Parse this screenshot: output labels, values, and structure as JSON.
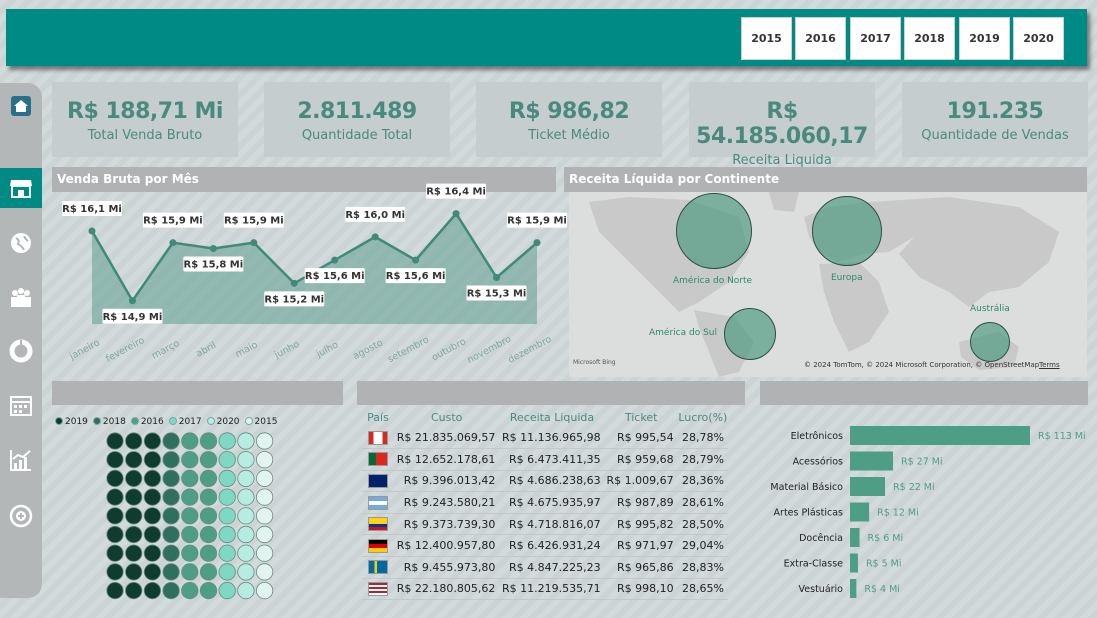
{
  "header": {
    "years": [
      "2015",
      "2016",
      "2017",
      "2018",
      "2019",
      "2020"
    ]
  },
  "sidebar": {
    "items": [
      "home-icon",
      "store-icon",
      "globe-icon",
      "people-icon",
      "donut-icon",
      "calendar-icon",
      "chart-icon",
      "plus-circle-icon"
    ]
  },
  "kpis": [
    {
      "value": "R$ 188,71 Mi",
      "label": "Total Venda Bruto"
    },
    {
      "value": "2.811.489",
      "label": "Quantidade Total"
    },
    {
      "value": "R$ 986,82",
      "label": "Ticket Médio"
    },
    {
      "value": "R$ 54.185.060,17",
      "label": "Receita Liquida"
    },
    {
      "value": "191.235",
      "label": "Quantidade de Vendas"
    }
  ],
  "line_panel": {
    "title": "Venda Bruta por Mês"
  },
  "map_panel": {
    "title": "Receita Líquida por Continente",
    "labels": [
      "América do Norte",
      "Europa",
      "América do Sul",
      "Austrália"
    ],
    "brand": "Microsoft Bing",
    "copyright": "© 2024 TomTom, © 2024 Microsoft Corporation, © OpenStreetMap",
    "terms": "Terms"
  },
  "donut_panel": {
    "legend": [
      {
        "name": "2019",
        "color": "#0e3d30"
      },
      {
        "name": "2018",
        "color": "#2f6f5f"
      },
      {
        "name": "2016",
        "color": "#4e9e86"
      },
      {
        "name": "2017",
        "color": "#7fd8c3"
      },
      {
        "name": "2020",
        "color": "#b6ece1"
      },
      {
        "name": "2015",
        "color": "#e2f4ef"
      }
    ]
  },
  "table": {
    "headers": [
      "País",
      "Custo",
      "Receita Liquida",
      "Ticket",
      "Lucro(%)"
    ],
    "rows": [
      {
        "flag": "canada-flag",
        "custo": "R$ 21.835.069,57",
        "receita": "R$ 11.136.965,98",
        "ticket": "R$ 995,54",
        "lucro": "28,78%"
      },
      {
        "flag": "portugal-flag",
        "custo": "R$ 12.652.178,61",
        "receita": "R$ 6.473.411,35",
        "ticket": "R$ 959,68",
        "lucro": "28,79%"
      },
      {
        "flag": "australia-flag",
        "custo": "R$ 9.396.013,42",
        "receita": "R$ 4.686.238,63",
        "ticket": "R$ 1.009,67",
        "lucro": "28,36%"
      },
      {
        "flag": "argentina-flag",
        "custo": "R$ 9.243.580,21",
        "receita": "R$ 4.675.935,97",
        "ticket": "R$ 987,89",
        "lucro": "28,61%"
      },
      {
        "flag": "colombia-flag",
        "custo": "R$ 9.373.739,30",
        "receita": "R$ 4.718.816,07",
        "ticket": "R$ 995,82",
        "lucro": "28,50%"
      },
      {
        "flag": "germany-flag",
        "custo": "R$ 12.400.957,80",
        "receita": "R$ 6.426.931,24",
        "ticket": "R$ 971,97",
        "lucro": "29,04%"
      },
      {
        "flag": "sweden-flag",
        "custo": "R$ 9.455.973,80",
        "receita": "R$ 4.847.225,23",
        "ticket": "R$ 965,86",
        "lucro": "28,83%"
      },
      {
        "flag": "usa-flag",
        "custo": "R$ 22.180.805,62",
        "receita": "R$ 11.219.535,71",
        "ticket": "R$ 998,10",
        "lucro": "28,65%"
      }
    ]
  },
  "chart_data": [
    {
      "type": "area",
      "categories": [
        "janeiro",
        "fevereiro",
        "março",
        "abril",
        "maio",
        "junho",
        "julho",
        "agosto",
        "setembro",
        "outubro",
        "novembro",
        "dezembro"
      ],
      "values": [
        16.1,
        14.9,
        15.9,
        15.8,
        15.9,
        15.2,
        15.6,
        16.0,
        15.6,
        16.4,
        15.3,
        15.9
      ],
      "labels": [
        "R$ 16,1 Mi",
        "R$ 14,9 Mi",
        "R$ 15,9 Mi",
        "R$ 15,8 Mi",
        "R$ 15,9 Mi",
        "R$ 15,2 Mi",
        "R$ 15,6 Mi",
        "R$ 16,0 Mi",
        "R$ 15,6 Mi",
        "R$ 16,4 Mi",
        "R$ 15,3 Mi",
        "R$ 15,9 Mi"
      ],
      "title": "Venda Bruta por Mês",
      "color": "#3f8a78"
    },
    {
      "type": "bar",
      "orientation": "horizontal",
      "categories": [
        "Eletrônicos",
        "Acessórios",
        "Material Básico",
        "Artes Plásticas",
        "Docência",
        "Extra-Classe",
        "Vestuário"
      ],
      "values": [
        113,
        27,
        22,
        12,
        6,
        5,
        4
      ],
      "labels": [
        "R$ 113 Mi",
        "R$ 27 Mi",
        "R$ 22 Mi",
        "R$ 12 Mi",
        "R$ 6 Mi",
        "R$ 5 Mi",
        "R$ 4 Mi"
      ],
      "color": "#4e9e86"
    }
  ]
}
